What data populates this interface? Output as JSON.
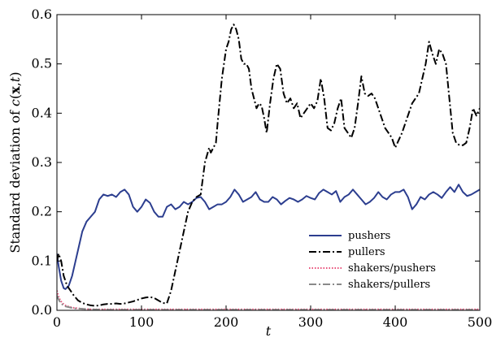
{
  "chart_data": {
    "type": "line",
    "title": "",
    "xlabel": "t",
    "ylabel_prefix": "Standard deviation of ",
    "ylabel_func": "c",
    "ylabel_open": "(",
    "ylabel_bold": "x",
    "ylabel_comma": ",",
    "ylabel_t": "t",
    "ylabel_close": ")",
    "xlim": [
      0,
      500
    ],
    "ylim": [
      0,
      0.6
    ],
    "xticks": [
      0,
      100,
      200,
      300,
      400,
      500
    ],
    "yticks": [
      0.0,
      0.1,
      0.2,
      0.3,
      0.4,
      0.5,
      0.6
    ],
    "xtick_labels": [
      "0",
      "100",
      "200",
      "300",
      "400",
      "500"
    ],
    "ytick_labels": [
      "0.0",
      "0.1",
      "0.2",
      "0.3",
      "0.4",
      "0.5",
      "0.6"
    ],
    "grid": false,
    "legend_position": "bottom-right",
    "series": [
      {
        "name": "pushers",
        "color": "#2c3e8f",
        "style": "solid",
        "x": [
          0,
          2,
          5,
          8,
          10,
          14,
          18,
          22,
          26,
          30,
          35,
          40,
          45,
          50,
          55,
          60,
          65,
          70,
          75,
          80,
          85,
          90,
          95,
          100,
          105,
          110,
          115,
          120,
          125,
          130,
          135,
          140,
          145,
          150,
          155,
          160,
          165,
          170,
          175,
          180,
          185,
          190,
          195,
          200,
          205,
          210,
          215,
          220,
          225,
          230,
          235,
          240,
          245,
          250,
          255,
          260,
          265,
          270,
          275,
          280,
          285,
          290,
          295,
          300,
          305,
          310,
          315,
          320,
          325,
          330,
          335,
          340,
          345,
          350,
          355,
          360,
          365,
          370,
          375,
          380,
          385,
          390,
          395,
          400,
          405,
          410,
          415,
          420,
          425,
          430,
          435,
          440,
          445,
          450,
          455,
          460,
          465,
          470,
          475,
          480,
          485,
          490,
          495,
          500
        ],
        "y": [
          0.115,
          0.09,
          0.06,
          0.045,
          0.043,
          0.05,
          0.07,
          0.1,
          0.13,
          0.16,
          0.18,
          0.19,
          0.2,
          0.225,
          0.235,
          0.232,
          0.235,
          0.23,
          0.24,
          0.245,
          0.235,
          0.21,
          0.2,
          0.21,
          0.225,
          0.218,
          0.2,
          0.19,
          0.19,
          0.21,
          0.215,
          0.205,
          0.21,
          0.22,
          0.215,
          0.22,
          0.228,
          0.23,
          0.22,
          0.205,
          0.21,
          0.215,
          0.215,
          0.22,
          0.23,
          0.245,
          0.235,
          0.22,
          0.225,
          0.23,
          0.24,
          0.225,
          0.22,
          0.22,
          0.23,
          0.225,
          0.215,
          0.222,
          0.228,
          0.225,
          0.22,
          0.225,
          0.232,
          0.228,
          0.225,
          0.238,
          0.245,
          0.24,
          0.235,
          0.242,
          0.22,
          0.23,
          0.235,
          0.245,
          0.235,
          0.225,
          0.215,
          0.22,
          0.228,
          0.24,
          0.23,
          0.225,
          0.235,
          0.24,
          0.24,
          0.245,
          0.23,
          0.205,
          0.215,
          0.23,
          0.225,
          0.235,
          0.24,
          0.235,
          0.228,
          0.24,
          0.25,
          0.24,
          0.255,
          0.24,
          0.232,
          0.235,
          0.24,
          0.245
        ]
      },
      {
        "name": "pullers",
        "color": "#000000",
        "style": "dashdot",
        "x": [
          0,
          2,
          5,
          8,
          12,
          16,
          20,
          25,
          30,
          35,
          40,
          45,
          50,
          55,
          60,
          65,
          70,
          75,
          80,
          85,
          90,
          95,
          100,
          105,
          110,
          115,
          120,
          125,
          130,
          135,
          140,
          145,
          150,
          155,
          160,
          165,
          170,
          175,
          180,
          182,
          185,
          188,
          190,
          195,
          200,
          203,
          206,
          209,
          212,
          215,
          218,
          221,
          224,
          227,
          230,
          233,
          236,
          239,
          242,
          245,
          248,
          252,
          256,
          260,
          264,
          268,
          272,
          276,
          280,
          284,
          288,
          292,
          296,
          300,
          304,
          308,
          312,
          316,
          320,
          324,
          328,
          332,
          336,
          340,
          344,
          348,
          352,
          356,
          360,
          364,
          368,
          372,
          376,
          380,
          384,
          388,
          392,
          396,
          400,
          404,
          408,
          412,
          416,
          420,
          424,
          428,
          432,
          436,
          440,
          444,
          448,
          452,
          456,
          460,
          464,
          468,
          472,
          476,
          480,
          484,
          488,
          492,
          496,
          500
        ],
        "y": [
          0.1,
          0.115,
          0.1,
          0.07,
          0.05,
          0.04,
          0.03,
          0.02,
          0.015,
          0.012,
          0.01,
          0.009,
          0.01,
          0.012,
          0.013,
          0.013,
          0.014,
          0.013,
          0.014,
          0.016,
          0.018,
          0.021,
          0.024,
          0.026,
          0.027,
          0.025,
          0.02,
          0.015,
          0.014,
          0.04,
          0.08,
          0.12,
          0.16,
          0.2,
          0.22,
          0.23,
          0.235,
          0.3,
          0.33,
          0.32,
          0.33,
          0.34,
          0.38,
          0.47,
          0.53,
          0.545,
          0.57,
          0.58,
          0.57,
          0.55,
          0.51,
          0.5,
          0.5,
          0.49,
          0.45,
          0.43,
          0.41,
          0.42,
          0.415,
          0.39,
          0.36,
          0.42,
          0.47,
          0.5,
          0.49,
          0.44,
          0.42,
          0.43,
          0.41,
          0.42,
          0.39,
          0.4,
          0.41,
          0.42,
          0.41,
          0.425,
          0.47,
          0.43,
          0.37,
          0.365,
          0.38,
          0.41,
          0.43,
          0.37,
          0.36,
          0.35,
          0.37,
          0.42,
          0.475,
          0.44,
          0.435,
          0.44,
          0.43,
          0.41,
          0.39,
          0.37,
          0.36,
          0.35,
          0.33,
          0.345,
          0.36,
          0.38,
          0.4,
          0.42,
          0.43,
          0.44,
          0.47,
          0.5,
          0.545,
          0.52,
          0.5,
          0.53,
          0.52,
          0.5,
          0.43,
          0.36,
          0.34,
          0.335,
          0.335,
          0.34,
          0.37,
          0.41,
          0.395,
          0.41
        ]
      },
      {
        "name": "shakers/pushers",
        "color": "#e8507a",
        "style": "dotted",
        "x": [
          0,
          2,
          4,
          7,
          10,
          15,
          20,
          30,
          40,
          60,
          100,
          200,
          300,
          400,
          500
        ],
        "y": [
          0.04,
          0.028,
          0.02,
          0.014,
          0.01,
          0.007,
          0.005,
          0.003,
          0.002,
          0.002,
          0.002,
          0.002,
          0.002,
          0.002,
          0.002
        ]
      },
      {
        "name": "shakers/pullers",
        "color": "#8a8a8a",
        "style": "dashdot",
        "x": [
          0,
          2,
          4,
          7,
          10,
          15,
          20,
          30,
          40,
          60,
          100,
          200,
          300,
          400,
          500
        ],
        "y": [
          0.03,
          0.022,
          0.016,
          0.011,
          0.008,
          0.006,
          0.004,
          0.003,
          0.002,
          0.001,
          0.001,
          0.001,
          0.001,
          0.001,
          0.001
        ]
      }
    ]
  }
}
